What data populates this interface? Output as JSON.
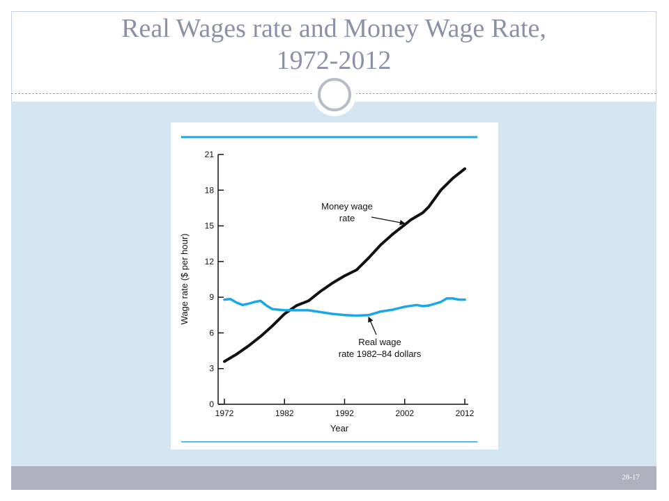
{
  "slide": {
    "title_line1": "Real Wages rate and Money Wage Rate,",
    "title_line2": "1972-2012",
    "slide_number": "28-17"
  },
  "colors": {
    "accent_blue": "#1aa7e4",
    "money_line": "#111111",
    "title_color": "#8b91a6"
  },
  "chart_data": {
    "type": "line",
    "title": "",
    "xlabel": "Year",
    "ylabel": "Wage rate ($ per hour)",
    "xlim": [
      1972,
      2012
    ],
    "ylim": [
      0,
      21
    ],
    "x_ticks": [
      1972,
      1982,
      1992,
      2002,
      2012
    ],
    "y_ticks": [
      0,
      3,
      6,
      9,
      12,
      15,
      18,
      21
    ],
    "grid": false,
    "series": [
      {
        "id": "money",
        "color": "#111111",
        "x": [
          1972,
          1974,
          1976,
          1978,
          1980,
          1982,
          1984,
          1986,
          1988,
          1990,
          1992,
          1994,
          1996,
          1998,
          2000,
          2002,
          2003,
          2004,
          2005,
          2006,
          2007,
          2008,
          2010,
          2012
        ],
        "y": [
          3.6,
          4.2,
          4.9,
          5.7,
          6.6,
          7.6,
          8.3,
          8.7,
          9.5,
          10.2,
          10.8,
          11.3,
          12.3,
          13.4,
          14.3,
          15.1,
          15.5,
          15.8,
          16.1,
          16.6,
          17.3,
          18.0,
          19.0,
          19.8
        ]
      },
      {
        "id": "real",
        "color": "#1aa7e4",
        "x": [
          1972,
          1973,
          1974,
          1975,
          1976,
          1977,
          1978,
          1979,
          1980,
          1982,
          1984,
          1986,
          1988,
          1990,
          1992,
          1994,
          1996,
          1998,
          2000,
          2002,
          2004,
          2005,
          2006,
          2008,
          2009,
          2010,
          2011,
          2012
        ],
        "y": [
          8.8,
          8.85,
          8.55,
          8.35,
          8.45,
          8.6,
          8.7,
          8.3,
          8.0,
          7.9,
          7.9,
          7.9,
          7.75,
          7.6,
          7.5,
          7.45,
          7.5,
          7.8,
          7.95,
          8.2,
          8.35,
          8.25,
          8.3,
          8.6,
          8.9,
          8.9,
          8.8,
          8.8
        ]
      }
    ],
    "annotations": [
      {
        "series": "money",
        "lines": [
          "Money wage",
          "rate"
        ],
        "arrow_to": [
          2002,
          15.2
        ]
      },
      {
        "series": "real",
        "lines": [
          "Real wage",
          "rate 1982–84 dollars"
        ],
        "arrow_to": [
          1996,
          7.5
        ]
      }
    ]
  }
}
